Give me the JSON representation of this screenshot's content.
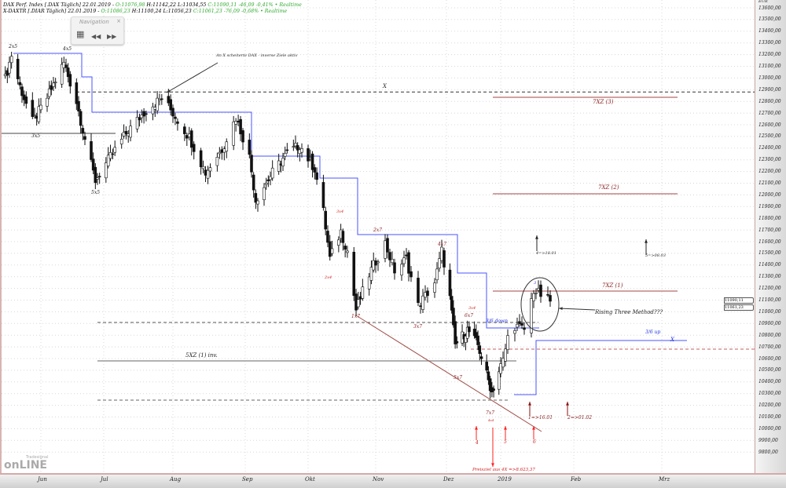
{
  "header": {
    "line1_name": "DAX Perf. Index [.DAX Täglich] 22.01.2019 - ",
    "line1_o": "O:11076,98",
    "line1_hl": " H:11142,22 L:11034,55 ",
    "line1_c": "C:11090,11 -46,09 -0,41% • Realtime",
    "line2_name": "X-DAXTR [.DIAR Täglich] 22.01.2019 - ",
    "line2_o": "O:11086,23",
    "line2_hl": " H:11100,24 L:11056,23 ",
    "line2_c": "C:11061,23 -76,09 -0,68% • Realtime"
  },
  "navigation": {
    "title": "Navigation",
    "close": "×",
    "grid_icon": "grid-icon",
    "back": "◀◀",
    "forward": "▶▶"
  },
  "logo": {
    "small": "Tradesignal",
    "big": "onLINE"
  },
  "annotations": {
    "top_note": "An X scheiterte DAX - inverse Ziele aktiv",
    "x_black": "X",
    "l2x5": "2x5",
    "l4x5": "4x5",
    "l3x5": "3x5",
    "l5x5": "5x5",
    "l3x4a": "3x4",
    "l2x4": "2x4",
    "l1x7": "1x7",
    "l2x7": "2x7",
    "l3x7": "3x7",
    "l4x7": "4x7",
    "l5x7": "5x7",
    "l6x7": "6x7",
    "l3x4b": "3x4",
    "l7x7": "7x7",
    "l4x4": "4x4",
    "xz3": "7XZ (3)",
    "xz2": "7XZ (2)",
    "xz1": "7XZ (1)",
    "xz_inv": "5XZ (1) inv.",
    "down36": "3/6 down",
    "up36": "3/6 up",
    "x_blue": "X",
    "rising": "Rising Three Method???",
    "t4": "4=>18.01",
    "t5": "5=>08.03",
    "t1": "1=>16.01",
    "t2": "2=>01.02",
    "n4": "4",
    "n5": "5",
    "n6": "6",
    "target": "Preisziel aus 4X =>8.623,37",
    "circle_3": "3"
  },
  "price_tags": [
    "11090,11",
    "11061,23"
  ],
  "colors": {
    "up": "#ffffff",
    "down": "#111111",
    "resistance": "#4a55ff",
    "zone": "#b86a6a",
    "trend": "#a0504a",
    "signal_red": "#ff2020",
    "signal_darkred": "#8b1010"
  },
  "chart_data": {
    "type": "candlestick",
    "currency": "EUR",
    "ylim": [
      9750,
      13650
    ],
    "grid": true,
    "ytick_labels": [
      "13600,00",
      "13500,00",
      "13400,00",
      "13300,00",
      "13200,00",
      "13100,00",
      "13000,00",
      "12900,00",
      "12800,00",
      "12700,00",
      "12600,00",
      "12500,00",
      "12400,00",
      "12300,00",
      "12200,00",
      "12100,00",
      "12000,00",
      "11900,00",
      "11800,00",
      "11700,00",
      "11600,00",
      "11500,00",
      "11400,00",
      "11300,00",
      "11200,00",
      "11100,00",
      "11000,00",
      "10900,00",
      "10800,00",
      "10700,00",
      "10600,00",
      "10500,00",
      "10400,00",
      "10300,00",
      "10200,00",
      "10100,00",
      "10000,00",
      "9900,00",
      "9800,00"
    ],
    "xtick_labels": [
      "Jun",
      "Jul",
      "Aug",
      "Sep",
      "Okt",
      "Nov",
      "Dez",
      "2019",
      "Feb",
      "Mrz"
    ],
    "swing_points": [
      [
        "2018-05-15",
        12996
      ],
      [
        "2018-05-18",
        13197
      ],
      [
        "2018-05-22",
        12929
      ],
      [
        "2018-05-28",
        12627
      ],
      [
        "2018-06-03",
        12795
      ],
      [
        "2018-06-12",
        13130
      ],
      [
        "2018-06-18",
        12795
      ],
      [
        "2018-06-24",
        12325
      ],
      [
        "2018-06-27",
        12124
      ],
      [
        "2018-07-04",
        12325
      ],
      [
        "2018-07-11",
        12526
      ],
      [
        "2018-07-20",
        12728
      ],
      [
        "2018-07-27",
        12828
      ],
      [
        "2018-07-31",
        12728
      ],
      [
        "2018-08-08",
        12493
      ],
      [
        "2018-08-15",
        12191
      ],
      [
        "2018-08-22",
        12392
      ],
      [
        "2018-08-28",
        12661
      ],
      [
        "2018-09-03",
        12325
      ],
      [
        "2018-09-06",
        11956
      ],
      [
        "2018-09-14",
        12191
      ],
      [
        "2018-09-21",
        12359
      ],
      [
        "2018-09-27",
        12426
      ],
      [
        "2018-10-04",
        12224
      ],
      [
        "2018-10-08",
        11855
      ],
      [
        "2018-10-11",
        11453
      ],
      [
        "2018-10-16",
        11688
      ],
      [
        "2018-10-19",
        11520
      ],
      [
        "2018-10-23",
        11017
      ],
      [
        "2018-10-29",
        11319
      ],
      [
        "2018-11-05",
        11587
      ],
      [
        "2018-11-09",
        11352
      ],
      [
        "2018-11-14",
        11453
      ],
      [
        "2018-11-19",
        11050
      ],
      [
        "2018-11-26",
        11252
      ],
      [
        "2018-11-29",
        11520
      ],
      [
        "2018-12-03",
        11117
      ],
      [
        "2018-12-06",
        10715
      ],
      [
        "2018-12-13",
        10849
      ],
      [
        "2018-12-19",
        10715
      ],
      [
        "2018-12-27",
        10312
      ],
      [
        "2019-01-02",
        10581
      ],
      [
        "2019-01-04",
        10782
      ],
      [
        "2019-01-07",
        10882
      ],
      [
        "2019-01-11",
        10849
      ],
      [
        "2019-01-15",
        11185
      ],
      [
        "2019-01-22",
        11090
      ]
    ],
    "levels": {
      "x_line": 12880,
      "x5_3_line": 12545,
      "inv_5xz1": 10680,
      "dashed_lower": 10340,
      "dashed_36": 11030,
      "red_dashed": 10790,
      "xz3": 12880,
      "xz2": 12050,
      "xz1": 11185
    },
    "last_close": 11090.11
  }
}
